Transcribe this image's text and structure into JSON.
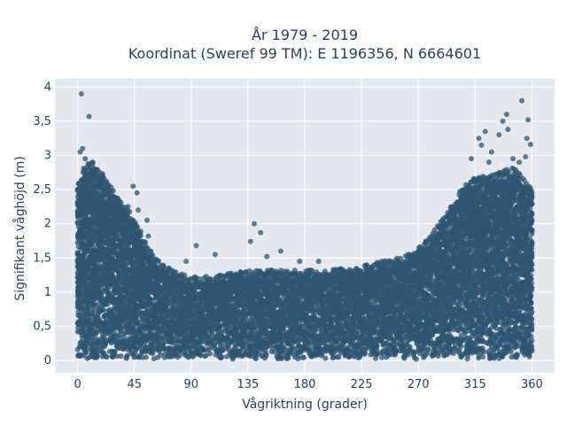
{
  "chart_data": {
    "type": "scatter",
    "title_lines": [
      "År 1979 - 2019",
      "Koordinat (Sweref 99 TM): E 1196356, N 6664601"
    ],
    "xlabel": "Vågriktning (grader)",
    "ylabel": "Signifikant våghöjd (m)",
    "xlim": [
      -18,
      378
    ],
    "ylim": [
      -0.18,
      4.12
    ],
    "x_ticks": [
      {
        "value": 0,
        "label": "0"
      },
      {
        "value": 45,
        "label": "45"
      },
      {
        "value": 90,
        "label": "90"
      },
      {
        "value": 135,
        "label": "135"
      },
      {
        "value": 180,
        "label": "180"
      },
      {
        "value": 225,
        "label": "225"
      },
      {
        "value": 270,
        "label": "270"
      },
      {
        "value": 315,
        "label": "315"
      },
      {
        "value": 360,
        "label": "360"
      }
    ],
    "y_ticks": [
      {
        "value": 0,
        "label": "0"
      },
      {
        "value": 0.5,
        "label": "0,5"
      },
      {
        "value": 1,
        "label": "1"
      },
      {
        "value": 1.5,
        "label": "1,5"
      },
      {
        "value": 2,
        "label": "2"
      },
      {
        "value": 2.5,
        "label": "2,5"
      },
      {
        "value": 3,
        "label": "3"
      },
      {
        "value": 3.5,
        "label": "3,5"
      },
      {
        "value": 4,
        "label": "4"
      }
    ],
    "grid": true,
    "marker_color": "#2f5670",
    "background_color": "#e5e8ef",
    "envelope": [
      {
        "x": 0,
        "y": 2.4
      },
      {
        "x": 5,
        "y": 2.7
      },
      {
        "x": 10,
        "y": 2.8
      },
      {
        "x": 20,
        "y": 2.6
      },
      {
        "x": 30,
        "y": 2.3
      },
      {
        "x": 40,
        "y": 2.1
      },
      {
        "x": 45,
        "y": 1.95
      },
      {
        "x": 55,
        "y": 1.55
      },
      {
        "x": 65,
        "y": 1.3
      },
      {
        "x": 80,
        "y": 1.15
      },
      {
        "x": 90,
        "y": 1.1
      },
      {
        "x": 110,
        "y": 1.12
      },
      {
        "x": 130,
        "y": 1.18
      },
      {
        "x": 150,
        "y": 1.2
      },
      {
        "x": 170,
        "y": 1.2
      },
      {
        "x": 190,
        "y": 1.2
      },
      {
        "x": 210,
        "y": 1.22
      },
      {
        "x": 230,
        "y": 1.28
      },
      {
        "x": 250,
        "y": 1.35
      },
      {
        "x": 265,
        "y": 1.45
      },
      {
        "x": 280,
        "y": 1.7
      },
      {
        "x": 295,
        "y": 2.1
      },
      {
        "x": 305,
        "y": 2.4
      },
      {
        "x": 315,
        "y": 2.55
      },
      {
        "x": 330,
        "y": 2.6
      },
      {
        "x": 345,
        "y": 2.7
      },
      {
        "x": 360,
        "y": 2.4
      }
    ],
    "outliers": [
      {
        "x": 3,
        "y": 3.9
      },
      {
        "x": 9,
        "y": 3.57
      },
      {
        "x": 4,
        "y": 3.1
      },
      {
        "x": 2,
        "y": 3.05
      },
      {
        "x": 6,
        "y": 2.95
      },
      {
        "x": 12,
        "y": 2.9
      },
      {
        "x": 44,
        "y": 2.55
      },
      {
        "x": 47,
        "y": 2.45
      },
      {
        "x": 48,
        "y": 2.2
      },
      {
        "x": 40,
        "y": 2.25
      },
      {
        "x": 55,
        "y": 2.05
      },
      {
        "x": 48,
        "y": 1.85
      },
      {
        "x": 56,
        "y": 1.82
      },
      {
        "x": 86,
        "y": 1.45
      },
      {
        "x": 94,
        "y": 1.68
      },
      {
        "x": 109,
        "y": 1.55
      },
      {
        "x": 140,
        "y": 2.0
      },
      {
        "x": 145,
        "y": 1.87
      },
      {
        "x": 137,
        "y": 1.74
      },
      {
        "x": 161,
        "y": 1.6
      },
      {
        "x": 150,
        "y": 1.52
      },
      {
        "x": 176,
        "y": 1.45
      },
      {
        "x": 191,
        "y": 1.45
      },
      {
        "x": 241,
        "y": 1.45
      },
      {
        "x": 263,
        "y": 1.55
      },
      {
        "x": 318,
        "y": 3.25
      },
      {
        "x": 323,
        "y": 3.35
      },
      {
        "x": 320,
        "y": 3.15
      },
      {
        "x": 334,
        "y": 3.3
      },
      {
        "x": 337,
        "y": 3.5
      },
      {
        "x": 340,
        "y": 3.6
      },
      {
        "x": 341,
        "y": 3.38
      },
      {
        "x": 352,
        "y": 3.8
      },
      {
        "x": 357,
        "y": 3.52
      },
      {
        "x": 356,
        "y": 3.25
      },
      {
        "x": 359,
        "y": 3.16
      },
      {
        "x": 312,
        "y": 2.95
      },
      {
        "x": 326,
        "y": 2.9
      },
      {
        "x": 345,
        "y": 2.95
      },
      {
        "x": 350,
        "y": 2.9
      },
      {
        "x": 355,
        "y": 2.98
      },
      {
        "x": 328,
        "y": 3.05
      }
    ]
  }
}
